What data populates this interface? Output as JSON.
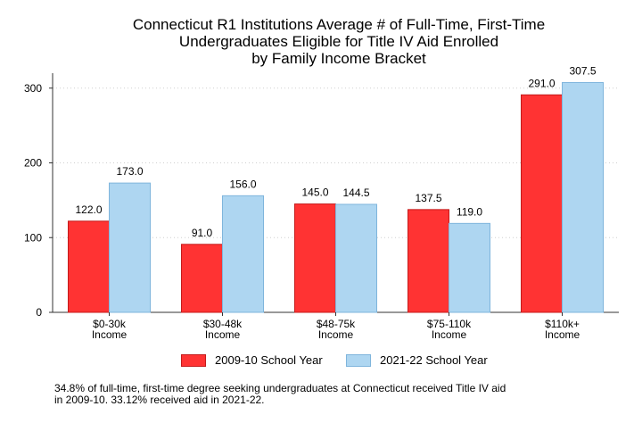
{
  "chart_data": {
    "type": "bar",
    "title_lines": [
      "Connecticut R1 Institutions Average # of Full-Time, First-Time",
      "Undergraduates Eligible for Title IV Aid Enrolled",
      "by Family Income Bracket"
    ],
    "categories": [
      "$0-30k\nIncome",
      "$30-48k\nIncome",
      "$48-75k\nIncome",
      "$75-110k\nIncome",
      "$110k+\nIncome"
    ],
    "series": [
      {
        "name": "2009-10 School Year",
        "values": [
          122.0,
          91.0,
          145.0,
          137.5,
          291.0
        ],
        "color": "#ff3333",
        "stroke": "#c41a1a"
      },
      {
        "name": "2021-22 School Year",
        "values": [
          173.0,
          156.0,
          144.5,
          119.0,
          307.5
        ],
        "color": "#aed6f1",
        "stroke": "#7fb5dc"
      }
    ],
    "data_labels": [
      [
        "122.0",
        "91.0",
        "145.0",
        "137.5",
        "291.0"
      ],
      [
        "173.0",
        "156.0",
        "144.5",
        "119.0",
        "307.5"
      ]
    ],
    "yticks": [
      0,
      100,
      200,
      300
    ],
    "ytick_labels": [
      "0",
      "100",
      "200",
      "300"
    ],
    "ylim": [
      0,
      320
    ],
    "xlabel": "",
    "ylabel": "",
    "grid": true,
    "legend_position": "bottom"
  },
  "footnote_lines": [
    "34.8% of full-time, first-time degree seeking undergraduates at Connecticut received Title IV aid",
    "in 2009-10. 33.12% received aid in 2021-22."
  ]
}
